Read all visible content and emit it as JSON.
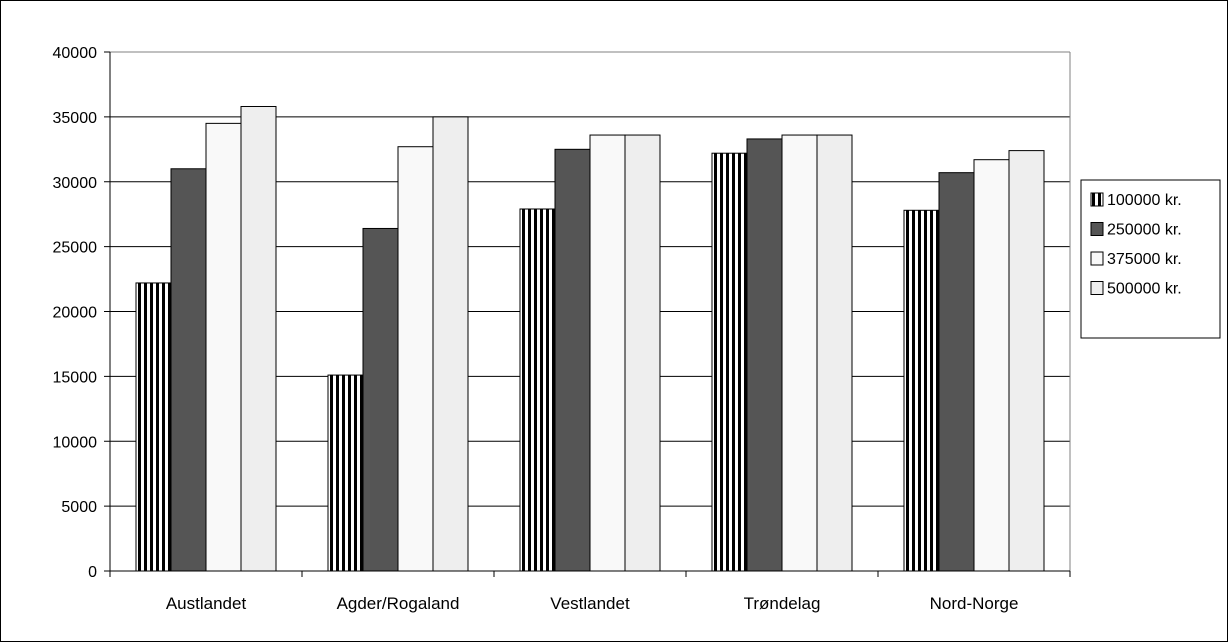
{
  "chart_data": {
    "type": "bar",
    "categories": [
      "Austlandet",
      "Agder/Rogaland",
      "Vestlandet",
      "Trøndelag",
      "Nord-Norge"
    ],
    "series": [
      {
        "name": "100000 kr.",
        "values": [
          22200,
          15100,
          27900,
          32200,
          27800
        ],
        "pattern": "vertical-stripes",
        "color": "#000000"
      },
      {
        "name": "250000 kr.",
        "values": [
          31000,
          26400,
          32500,
          33300,
          30700
        ],
        "pattern": "solid",
        "color": "#555555"
      },
      {
        "name": "375000 kr.",
        "values": [
          34500,
          32700,
          33600,
          33600,
          31700
        ],
        "pattern": "solid",
        "color": "#f9f9f9"
      },
      {
        "name": "500000 kr.",
        "values": [
          35800,
          35000,
          33600,
          33600,
          32400
        ],
        "pattern": "solid",
        "color": "#eeeeee"
      }
    ],
    "ylim": [
      0,
      40000
    ],
    "yticks": [
      "0",
      "5000",
      "10000",
      "15000",
      "20000",
      "25000",
      "30000",
      "35000",
      "40000"
    ],
    "xlabel": "",
    "ylabel": "",
    "grid": true,
    "legend_position": "right"
  }
}
